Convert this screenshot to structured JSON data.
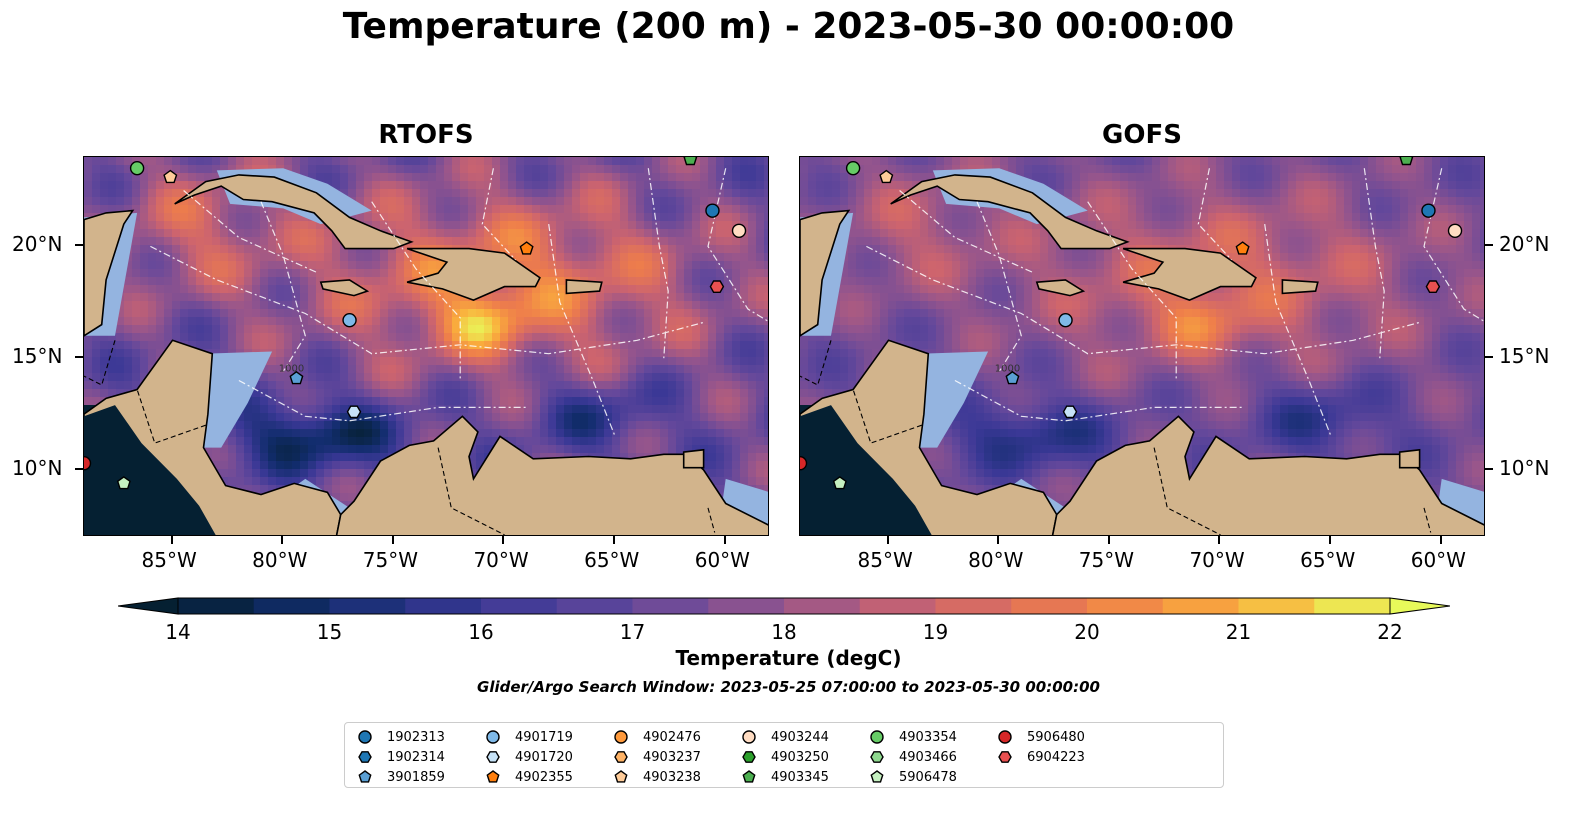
{
  "title": "Temperature (200 m) - 2023-05-30 00:00:00",
  "panels": [
    {
      "title": "RTOFS",
      "variant": "rtofs"
    },
    {
      "title": "GOFS",
      "variant": "gofs"
    }
  ],
  "map_extent": {
    "lon": [
      -89,
      -58
    ],
    "lat": [
      7,
      24
    ]
  },
  "x_ticks": [
    "85°W",
    "80°W",
    "75°W",
    "70°W",
    "65°W",
    "60°W"
  ],
  "x_tick_values": [
    -85,
    -80,
    -75,
    -70,
    -65,
    -60
  ],
  "y_ticks": [
    "20°N",
    "15°N",
    "10°N"
  ],
  "y_tick_values": [
    20,
    15,
    10
  ],
  "colorbar": {
    "labels": [
      "14",
      "15",
      "16",
      "17",
      "18",
      "19",
      "20",
      "21",
      "22"
    ],
    "min": 14,
    "max": 22,
    "step": 0.5,
    "colormap": "thermal",
    "extend": "both",
    "title": "Temperature (degC)"
  },
  "contour_label": "1000",
  "search_window": "Glider/Argo Search Window: 2023-05-25 07:00:00 to 2023-05-30 00:00:00",
  "colors": {
    "land": "#d2b48c",
    "shallow_water": "#94b4e0",
    "deep_cold": "#052032"
  },
  "legend": [
    {
      "id": "1902313",
      "marker": "circle",
      "color": "#1f77b4"
    },
    {
      "id": "1902314",
      "marker": "hexagon",
      "color": "#1f77b4"
    },
    {
      "id": "3901859",
      "marker": "pentagon",
      "color": "#5a9fd4"
    },
    {
      "id": "4901719",
      "marker": "circle",
      "color": "#7fb9e8"
    },
    {
      "id": "4901720",
      "marker": "hexagon",
      "color": "#c6e2f7"
    },
    {
      "id": "4902355",
      "marker": "pentagon",
      "color": "#ff7f0e"
    },
    {
      "id": "4902476",
      "marker": "circle",
      "color": "#ff9a3c"
    },
    {
      "id": "4903237",
      "marker": "hexagon",
      "color": "#ffb366"
    },
    {
      "id": "4903238",
      "marker": "pentagon",
      "color": "#ffcc99"
    },
    {
      "id": "4903244",
      "marker": "circle",
      "color": "#ffdcc2"
    },
    {
      "id": "4903250",
      "marker": "hexagon",
      "color": "#2ca02c"
    },
    {
      "id": "4903345",
      "marker": "pentagon",
      "color": "#4caf50"
    },
    {
      "id": "4903354",
      "marker": "circle",
      "color": "#66cc66"
    },
    {
      "id": "4903466",
      "marker": "hexagon",
      "color": "#8fd98f"
    },
    {
      "id": "5906478",
      "marker": "pentagon",
      "color": "#c5f0c0"
    },
    {
      "id": "5906480",
      "marker": "circle",
      "color": "#d62728"
    },
    {
      "id": "6904223",
      "marker": "hexagon",
      "color": "#e85050"
    }
  ],
  "floats": [
    {
      "id": "4901719",
      "lon": -77.0,
      "lat": 16.7
    },
    {
      "id": "3901859",
      "lon": -79.4,
      "lat": 14.1
    },
    {
      "id": "4901720",
      "lon": -76.8,
      "lat": 12.6
    },
    {
      "id": "4902355",
      "lon": -69.0,
      "lat": 19.9
    },
    {
      "id": "1902313",
      "lon": -60.6,
      "lat": 21.6
    },
    {
      "id": "4903244",
      "lon": -59.4,
      "lat": 20.7
    },
    {
      "id": "6904223",
      "lon": -60.4,
      "lat": 18.2
    },
    {
      "id": "4903238",
      "lon": -85.1,
      "lat": 23.1
    },
    {
      "id": "4903354",
      "lon": -86.6,
      "lat": 23.5
    },
    {
      "id": "5906478",
      "lon": -87.2,
      "lat": 9.4
    },
    {
      "id": "5906480",
      "lon": -89.0,
      "lat": 10.3
    },
    {
      "id": "4903345",
      "lon": -61.6,
      "lat": 23.9
    }
  ]
}
